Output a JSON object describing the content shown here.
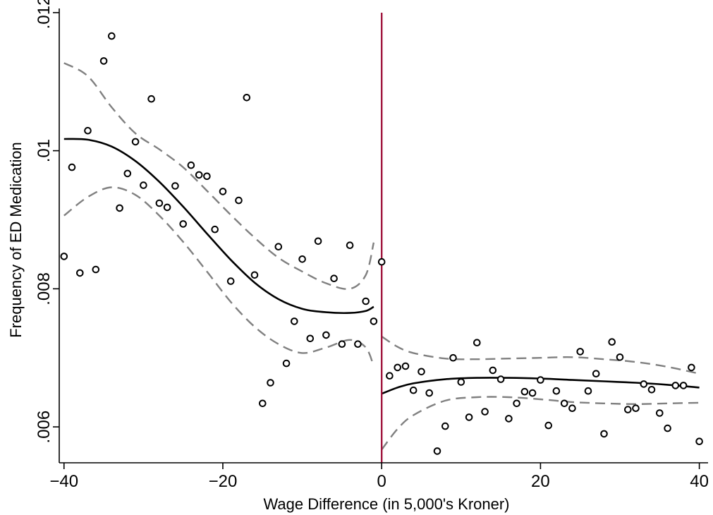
{
  "chart_data": {
    "type": "scatter",
    "xlabel": "Wage Difference (in 5,000's Kroner)",
    "ylabel": "Frequency of ED Medication",
    "xlim": [
      -40.6,
      41.1
    ],
    "ylim": [
      0.00548,
      0.01206
    ],
    "x_ticks": [
      -40,
      -20,
      0,
      20,
      40
    ],
    "x_tick_labels": [
      "−40",
      "−20",
      "0",
      "20",
      "40"
    ],
    "y_ticks": [
      0.006,
      0.008,
      0.01,
      0.012
    ],
    "y_tick_labels": [
      ".006",
      ".008",
      ".01",
      ".012"
    ],
    "grid": false,
    "cutoff_x": 0,
    "colors": {
      "points": "#000000",
      "fit": "#000000",
      "ci": "#808080",
      "cutoff": "#a0143c",
      "axis": "#000000"
    },
    "points": [
      {
        "x": -40,
        "y": 0.00847
      },
      {
        "x": -39,
        "y": 0.00976
      },
      {
        "x": -38,
        "y": 0.00823
      },
      {
        "x": -37,
        "y": 0.01029
      },
      {
        "x": -36,
        "y": 0.00828
      },
      {
        "x": -35,
        "y": 0.0113
      },
      {
        "x": -34,
        "y": 0.01166
      },
      {
        "x": -33,
        "y": 0.00917
      },
      {
        "x": -32,
        "y": 0.00967
      },
      {
        "x": -31,
        "y": 0.01013
      },
      {
        "x": -30,
        "y": 0.0095
      },
      {
        "x": -29,
        "y": 0.01075
      },
      {
        "x": -28,
        "y": 0.00924
      },
      {
        "x": -27,
        "y": 0.00918
      },
      {
        "x": -26,
        "y": 0.00949
      },
      {
        "x": -25,
        "y": 0.00894
      },
      {
        "x": -24,
        "y": 0.00979
      },
      {
        "x": -23,
        "y": 0.00965
      },
      {
        "x": -22,
        "y": 0.00963
      },
      {
        "x": -21,
        "y": 0.00886
      },
      {
        "x": -20,
        "y": 0.00941
      },
      {
        "x": -19,
        "y": 0.00811
      },
      {
        "x": -18,
        "y": 0.00928
      },
      {
        "x": -17,
        "y": 0.01077
      },
      {
        "x": -16,
        "y": 0.0082
      },
      {
        "x": -15,
        "y": 0.00634
      },
      {
        "x": -14,
        "y": 0.00664
      },
      {
        "x": -13,
        "y": 0.00861
      },
      {
        "x": -12,
        "y": 0.00692
      },
      {
        "x": -11,
        "y": 0.00753
      },
      {
        "x": -10,
        "y": 0.00843
      },
      {
        "x": -9,
        "y": 0.00728
      },
      {
        "x": -8,
        "y": 0.00869
      },
      {
        "x": -7,
        "y": 0.00733
      },
      {
        "x": -6,
        "y": 0.00815
      },
      {
        "x": -5,
        "y": 0.0072
      },
      {
        "x": -4,
        "y": 0.00863
      },
      {
        "x": -3,
        "y": 0.0072
      },
      {
        "x": -2,
        "y": 0.00782
      },
      {
        "x": -1,
        "y": 0.00753
      },
      {
        "x": 0,
        "y": 0.00839
      },
      {
        "x": 1,
        "y": 0.00674
      },
      {
        "x": 2,
        "y": 0.00686
      },
      {
        "x": 3,
        "y": 0.00688
      },
      {
        "x": 4,
        "y": 0.00653
      },
      {
        "x": 5,
        "y": 0.0068
      },
      {
        "x": 6,
        "y": 0.00649
      },
      {
        "x": 7,
        "y": 0.00565
      },
      {
        "x": 8,
        "y": 0.00601
      },
      {
        "x": 9,
        "y": 0.007
      },
      {
        "x": 10,
        "y": 0.00665
      },
      {
        "x": 11,
        "y": 0.00614
      },
      {
        "x": 12,
        "y": 0.00722
      },
      {
        "x": 13,
        "y": 0.00622
      },
      {
        "x": 14,
        "y": 0.00682
      },
      {
        "x": 15,
        "y": 0.00669
      },
      {
        "x": 16,
        "y": 0.00612
      },
      {
        "x": 17,
        "y": 0.00634
      },
      {
        "x": 18,
        "y": 0.00651
      },
      {
        "x": 19,
        "y": 0.00649
      },
      {
        "x": 20,
        "y": 0.00668
      },
      {
        "x": 21,
        "y": 0.00602
      },
      {
        "x": 22,
        "y": 0.00652
      },
      {
        "x": 23,
        "y": 0.00634
      },
      {
        "x": 24,
        "y": 0.00627
      },
      {
        "x": 25,
        "y": 0.00709
      },
      {
        "x": 26,
        "y": 0.00652
      },
      {
        "x": 27,
        "y": 0.00677
      },
      {
        "x": 28,
        "y": 0.0059
      },
      {
        "x": 29,
        "y": 0.00723
      },
      {
        "x": 30,
        "y": 0.00701
      },
      {
        "x": 31,
        "y": 0.00625
      },
      {
        "x": 32,
        "y": 0.00627
      },
      {
        "x": 33,
        "y": 0.00662
      },
      {
        "x": 34,
        "y": 0.00654
      },
      {
        "x": 35,
        "y": 0.0062
      },
      {
        "x": 36,
        "y": 0.00598
      },
      {
        "x": 37,
        "y": 0.0066
      },
      {
        "x": 38,
        "y": 0.0066
      },
      {
        "x": 39,
        "y": 0.00686
      },
      {
        "x": 40,
        "y": 0.00579
      }
    ],
    "fit_left": {
      "x": [
        -40,
        -37,
        -34,
        -31,
        -28,
        -25,
        -22,
        -19,
        -16,
        -13,
        -10,
        -7,
        -4,
        -2,
        -1
      ],
      "y": [
        0.01017,
        0.01016,
        0.01006,
        0.00985,
        0.00955,
        0.00919,
        0.0088,
        0.00842,
        0.00809,
        0.00785,
        0.00771,
        0.00766,
        0.00765,
        0.00768,
        0.00774
      ],
      "lo": [
        0.00906,
        0.00933,
        0.00947,
        0.00936,
        0.00906,
        0.00868,
        0.00825,
        0.00781,
        0.00745,
        0.0072,
        0.00707,
        0.00715,
        0.00726,
        0.00715,
        0.00688
      ],
      "hi": [
        0.01127,
        0.01108,
        0.01063,
        0.01025,
        0.01002,
        0.00976,
        0.00942,
        0.00907,
        0.00874,
        0.00845,
        0.00825,
        0.00808,
        0.008,
        0.0082,
        0.00867
      ]
    },
    "fit_right": {
      "x": [
        0,
        2,
        4,
        8,
        12,
        16,
        20,
        24,
        28,
        32,
        36,
        40
      ],
      "y": [
        0.00648,
        0.00657,
        0.00663,
        0.00669,
        0.00671,
        0.00671,
        0.0067,
        0.00668,
        0.00666,
        0.00664,
        0.00661,
        0.00657
      ],
      "lo": [
        0.00567,
        0.00597,
        0.00617,
        0.00638,
        0.00643,
        0.00643,
        0.0064,
        0.00636,
        0.00634,
        0.00633,
        0.00634,
        0.00635
      ],
      "hi": [
        0.00731,
        0.00716,
        0.00707,
        0.00699,
        0.00698,
        0.00699,
        0.007,
        0.00701,
        0.00698,
        0.00694,
        0.00687,
        0.00677
      ]
    }
  }
}
